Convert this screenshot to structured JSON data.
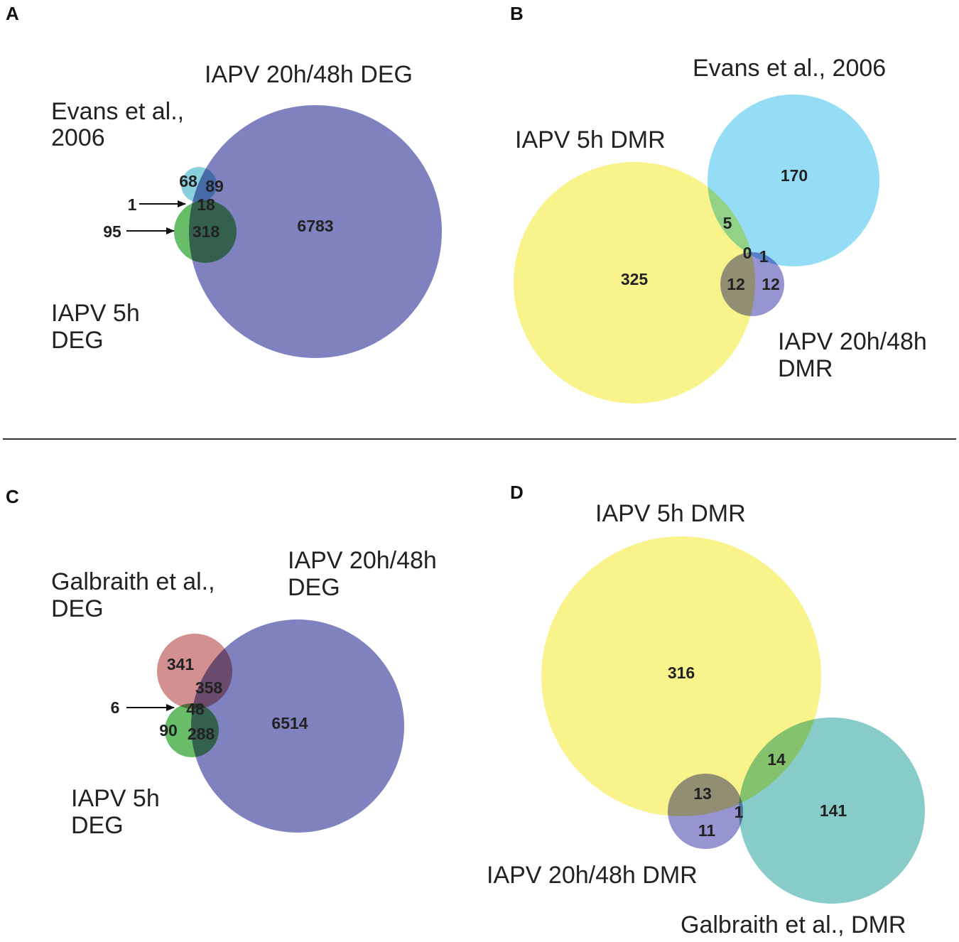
{
  "colors": {
    "deg_20_48": "#4f52a8",
    "deg_5h": "#2ea52e",
    "evans": "#5bbdd0",
    "galbraith_deg": "#c26566",
    "dmr_5h": "#f5ee5e",
    "evans_dmr": "#6cd0f4",
    "dmr_20_48": "#6d6cc0",
    "galbraith_dmr": "#5ab8b4",
    "text": "#222222",
    "arrow": "#111111"
  },
  "panels": {
    "a": {
      "letter": "A",
      "title_iapv_20_48": "IAPV 20h/48h DEG",
      "evans_line1": "Evans et al.,",
      "evans_line2": "2006",
      "iapv5_line1": "IAPV 5h",
      "iapv5_line2": "DEG",
      "counts": {
        "evans_only": "68",
        "evans_and_20_48": "89",
        "all_three": "18",
        "deg5_and_20_48": "318",
        "only_20_48": "6783"
      },
      "arrow_labels": {
        "evans_and_5h": "1",
        "only_5h": "95"
      }
    },
    "b": {
      "letter": "B",
      "evans_label": "Evans et al., 2006",
      "iapv5_label": "IAPV 5h DMR",
      "iapv20_line1": "IAPV 20h/48h",
      "iapv20_line2": "DMR",
      "counts": {
        "only_5h": "325",
        "only_evans": "170",
        "evans_and_5h": "5",
        "all_three": "0",
        "evans_and_20_48": "1",
        "dmr5_and_20_48": "12",
        "only_20_48": "12"
      }
    },
    "c": {
      "letter": "C",
      "galbraith_line1": "Galbraith et al.,",
      "galbraith_line2": "DEG",
      "iapv20_line1": "IAPV 20h/48h",
      "iapv20_line2": "DEG",
      "iapv5_line1": "IAPV 5h",
      "iapv5_line2": "DEG",
      "counts": {
        "galbraith_only": "341",
        "galbraith_and_20_48": "358",
        "all_three": "48",
        "only_5h": "90",
        "deg5_and_20_48": "288",
        "only_20_48": "6514"
      },
      "arrow_labels": {
        "galbraith_and_5h": "6"
      }
    },
    "d": {
      "letter": "D",
      "iapv5_label": "IAPV 5h DMR",
      "iapv20_label": "IAPV 20h/48h DMR",
      "galbraith_label": "Galbraith et al., DMR",
      "counts": {
        "only_5h": "316",
        "dmr5_and_galbraith": "14",
        "dmr5_and_20_48": "13",
        "all_three": "1",
        "only_20_48": "11",
        "only_galbraith": "141"
      }
    }
  }
}
